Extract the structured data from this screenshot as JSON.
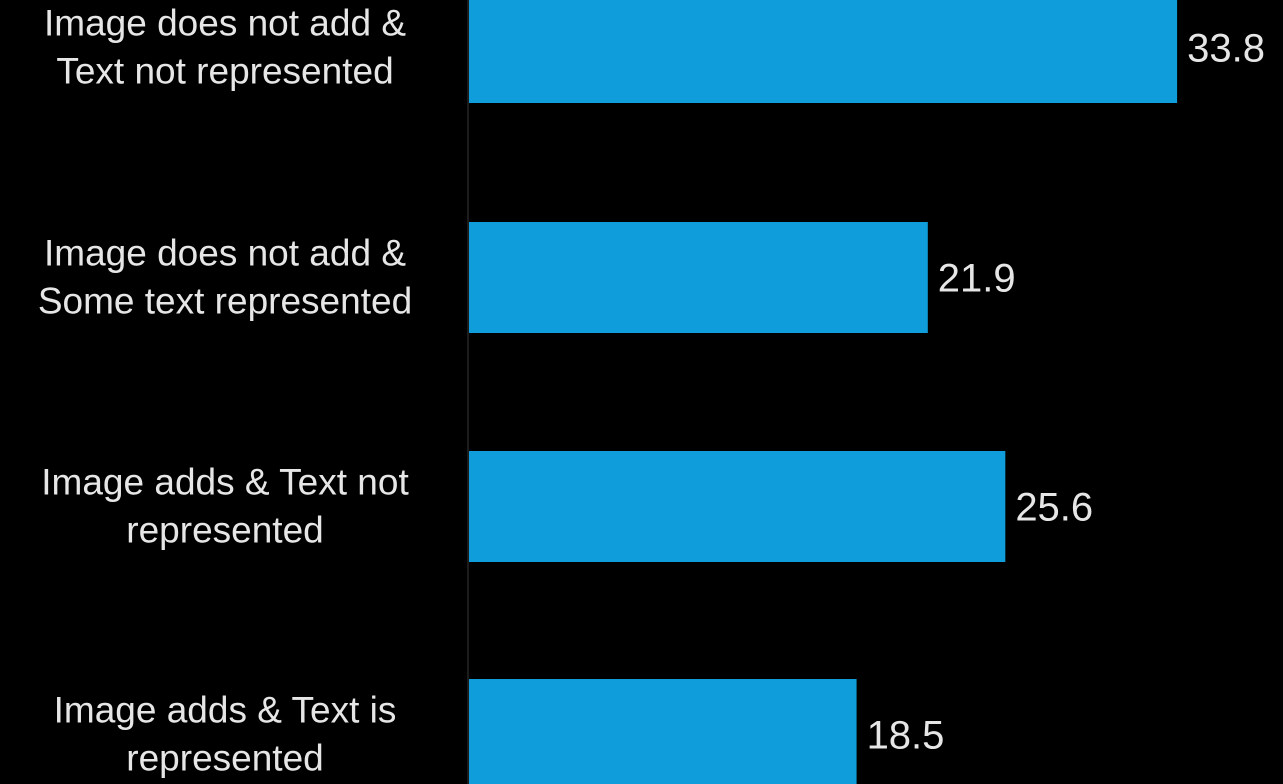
{
  "chart_data": {
    "type": "bar",
    "orientation": "horizontal",
    "categories": [
      [
        "Image does not add &",
        "Text not represented"
      ],
      [
        "Image does not add &",
        "Some text represented"
      ],
      [
        "Image adds & Text not",
        "represented"
      ],
      [
        "Image adds & Text is",
        "represented"
      ]
    ],
    "values": [
      33.8,
      21.9,
      25.6,
      18.5
    ],
    "value_labels": [
      "33.8",
      "21.9",
      "25.6",
      "18.5"
    ],
    "title": "",
    "xlabel": "",
    "ylabel": "",
    "grid": false,
    "legend": "none",
    "colors": {
      "background": "#000000",
      "bar": "#0f9ddb",
      "text": "#e6e6e6"
    }
  }
}
